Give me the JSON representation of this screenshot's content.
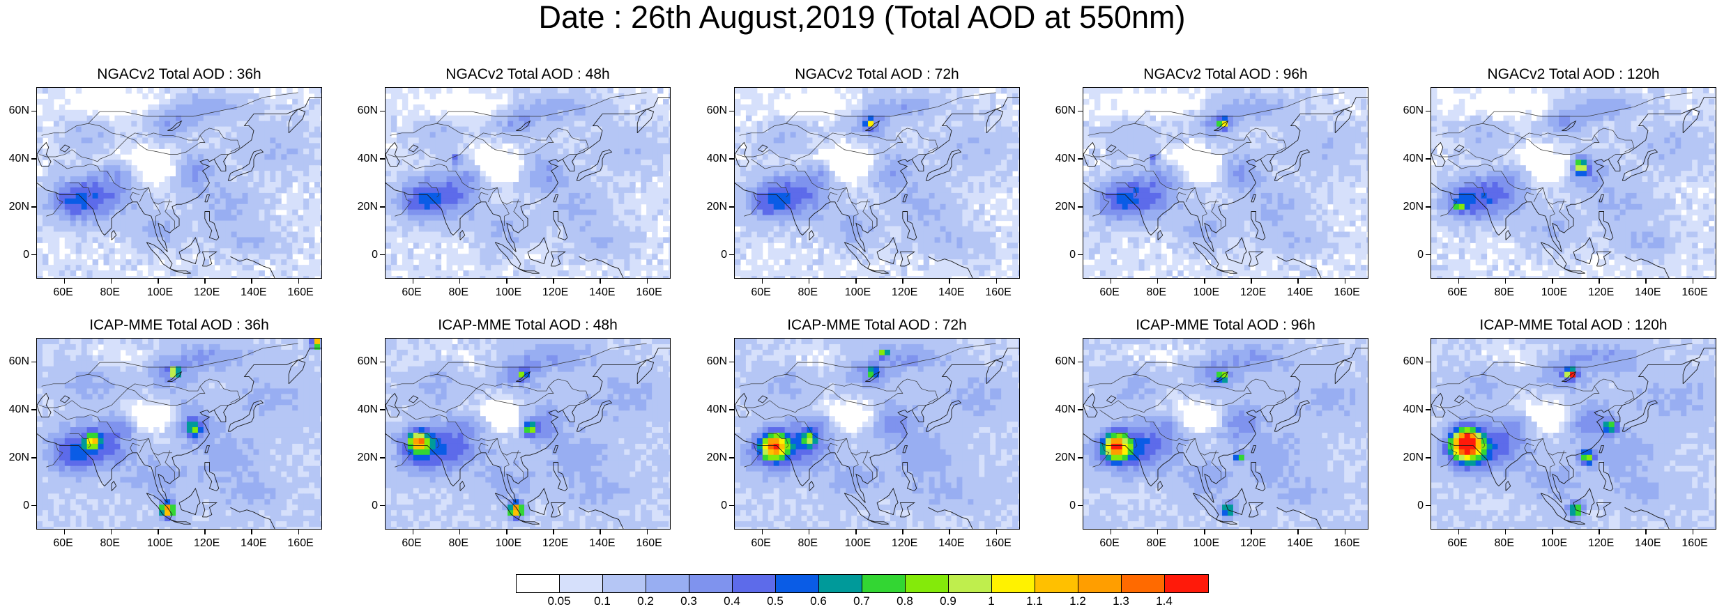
{
  "title": "Date : 26th August,2019 (Total AOD at 550nm)",
  "panels": [
    {
      "title": "NGACv2 Total AOD : 36h",
      "model": "NGACv2",
      "lead": "36h"
    },
    {
      "title": "NGACv2 Total AOD : 48h",
      "model": "NGACv2",
      "lead": "48h"
    },
    {
      "title": "NGACv2 Total AOD : 72h",
      "model": "NGACv2",
      "lead": "72h"
    },
    {
      "title": "NGACv2 Total AOD : 96h",
      "model": "NGACv2",
      "lead": "96h"
    },
    {
      "title": "NGACv2 Total AOD : 120h",
      "model": "NGACv2",
      "lead": "120h"
    },
    {
      "title": "ICAP-MME Total AOD : 36h",
      "model": "ICAP-MME",
      "lead": "36h"
    },
    {
      "title": "ICAP-MME Total AOD : 48h",
      "model": "ICAP-MME",
      "lead": "48h"
    },
    {
      "title": "ICAP-MME Total AOD : 72h",
      "model": "ICAP-MME",
      "lead": "72h"
    },
    {
      "title": "ICAP-MME Total AOD : 96h",
      "model": "ICAP-MME",
      "lead": "96h"
    },
    {
      "title": "ICAP-MME Total AOD : 120h",
      "model": "ICAP-MME",
      "lead": "120h"
    }
  ],
  "map": {
    "lon_range": [
      48,
      170
    ],
    "lat_range": [
      -10,
      70
    ],
    "lon_ticks": [
      "60E",
      "80E",
      "100E",
      "120E",
      "140E",
      "160E"
    ],
    "lat_ticks": [
      "60N",
      "40N",
      "20N",
      "0"
    ]
  },
  "colorbar": {
    "colors": [
      "#ffffff",
      "#d6e0fb",
      "#b5c6f5",
      "#98aef2",
      "#7f93ee",
      "#5d6bea",
      "#0a5ce6",
      "#009a9a",
      "#33d633",
      "#84ea0a",
      "#bfee4d",
      "#fff200",
      "#ffc000",
      "#ff9e00",
      "#ff6a00",
      "#ff1a0a"
    ],
    "labels": [
      "0.05",
      "0.1",
      "0.2",
      "0.3",
      "0.4",
      "0.5",
      "0.6",
      "0.7",
      "0.8",
      "0.9",
      "1",
      "1.1",
      "1.2",
      "1.3",
      "1.4"
    ]
  }
}
